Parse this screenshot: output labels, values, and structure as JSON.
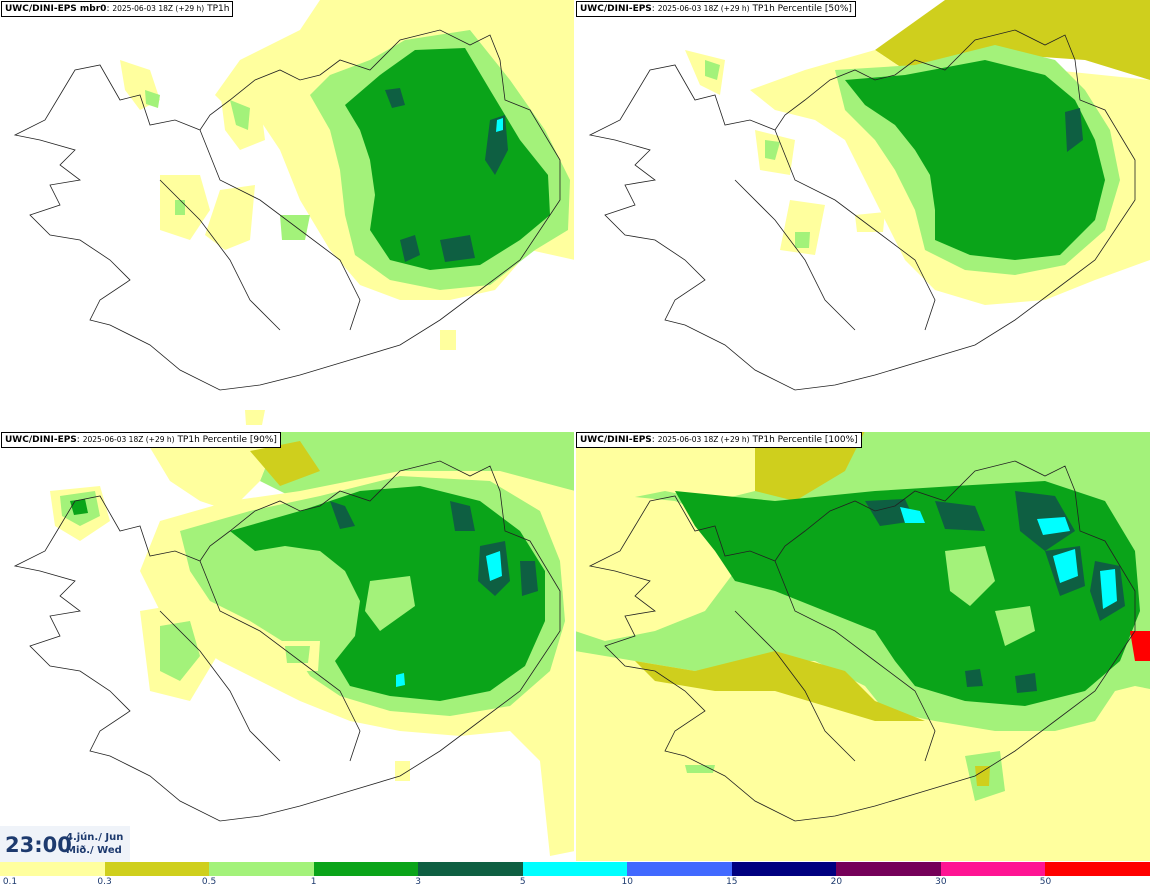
{
  "panels": [
    {
      "model": "UWC/DINI-EPS mbr0",
      "run": "2025-06-03 18Z (+29 h)",
      "product": "TP1h"
    },
    {
      "model": "UWC/DINI-EPS",
      "run": "2025-06-03 18Z (+29 h)",
      "product": "TP1h Percentile [50%]"
    },
    {
      "model": "UWC/DINI-EPS",
      "run": "2025-06-03 18Z (+29 h)",
      "product": "TP1h Percentile [90%]"
    },
    {
      "model": "UWC/DINI-EPS",
      "run": "2025-06-03 18Z (+29 h)",
      "product": "TP1h Percentile [100%]"
    }
  ],
  "time": {
    "hour": "23:00",
    "date_local": "4.jún./ Jun",
    "weekday": "Mið./ Wed"
  },
  "legend": {
    "colors": [
      "#ffff9e",
      "#cfcf1d",
      "#a3f27a",
      "#0aa419",
      "#0e5f42",
      "#00ffff",
      "#4169ff",
      "#000080",
      "#750059",
      "#ff1493",
      "#ff0000"
    ],
    "ticks": [
      "0.1",
      "0.3",
      "0.5",
      "1",
      "3",
      "5",
      "10",
      "15",
      "20",
      "30",
      "50"
    ]
  }
}
